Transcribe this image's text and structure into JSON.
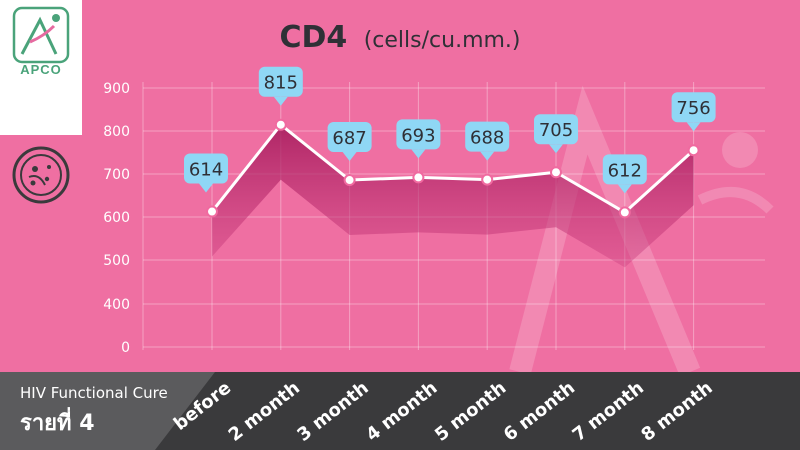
{
  "logo": {
    "text": "APCO",
    "icon": "apco-logo-icon"
  },
  "side_icon": "cell-icon",
  "header": {
    "title": "CD4",
    "unit": "(cells/cu.mm.)"
  },
  "case_panel": {
    "line1": "HIV Functional Cure",
    "line2": "รายที่ 4"
  },
  "colors": {
    "background": "#ef6fa2",
    "bottom_bar": "#3a3a3c",
    "callout": "#8fd7f5",
    "line": "#ffffff",
    "logo_green": "#4aa37a"
  },
  "chart_data": {
    "type": "line",
    "title": "CD4",
    "subtitle": "(cells/cu.mm.)",
    "categories": [
      "before",
      "2 month",
      "3 month",
      "4 month",
      "5 month",
      "6 month",
      "7 month",
      "8 month"
    ],
    "values": [
      614,
      815,
      687,
      693,
      688,
      705,
      612,
      756
    ],
    "labels": [
      "614",
      "815",
      "687",
      "693",
      "688",
      "705",
      "612",
      "756"
    ],
    "y_ticks": [
      "900",
      "800",
      "700",
      "600",
      "500",
      "400",
      "0"
    ],
    "ylim": [
      0,
      900
    ],
    "grid": true,
    "legend": "none"
  }
}
